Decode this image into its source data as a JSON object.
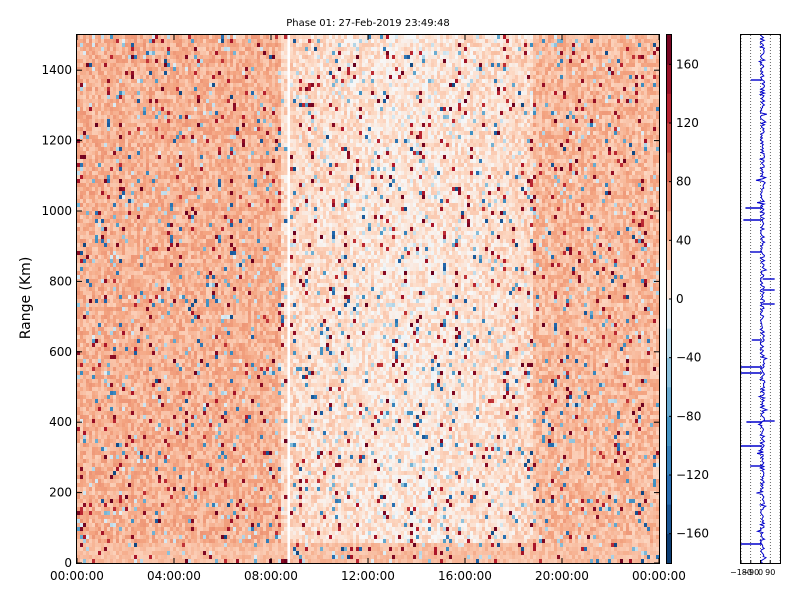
{
  "chart_data": [
    {
      "type": "heatmap",
      "title": "Phase 01: 27-Feb-2019 23:49:48",
      "xlabel": "",
      "ylabel": "Range (Km)",
      "xticks": [
        "00:00:00",
        "04:00:00",
        "08:00:00",
        "12:00:00",
        "16:00:00",
        "20:00:00",
        "00:00:00"
      ],
      "yticks": [
        0,
        200,
        400,
        600,
        800,
        1000,
        1200,
        1400
      ],
      "ylim": [
        0,
        1500
      ],
      "grid": false,
      "colorscale": "red-white-blue",
      "colorbar_ticks": [
        160,
        120,
        80,
        40,
        0,
        -40,
        -80,
        -120,
        -160
      ],
      "colorbar_range": [
        -180,
        180
      ],
      "value_summary": "mostly positive phase values (about 20 to 60) with scattered high positive and negative outliers; lower values around the middle of the day"
    },
    {
      "type": "line",
      "title": "",
      "xlabel": "",
      "ylabel": "",
      "xticks": [
        "−180",
        "−90",
        "0",
        "90"
      ],
      "xlim": [
        -180,
        180
      ],
      "grid": true,
      "series_color": "#0000cc",
      "value_summary": "range profile of phase fluctuating around 0 to 40 with occasional spikes to −180"
    }
  ]
}
